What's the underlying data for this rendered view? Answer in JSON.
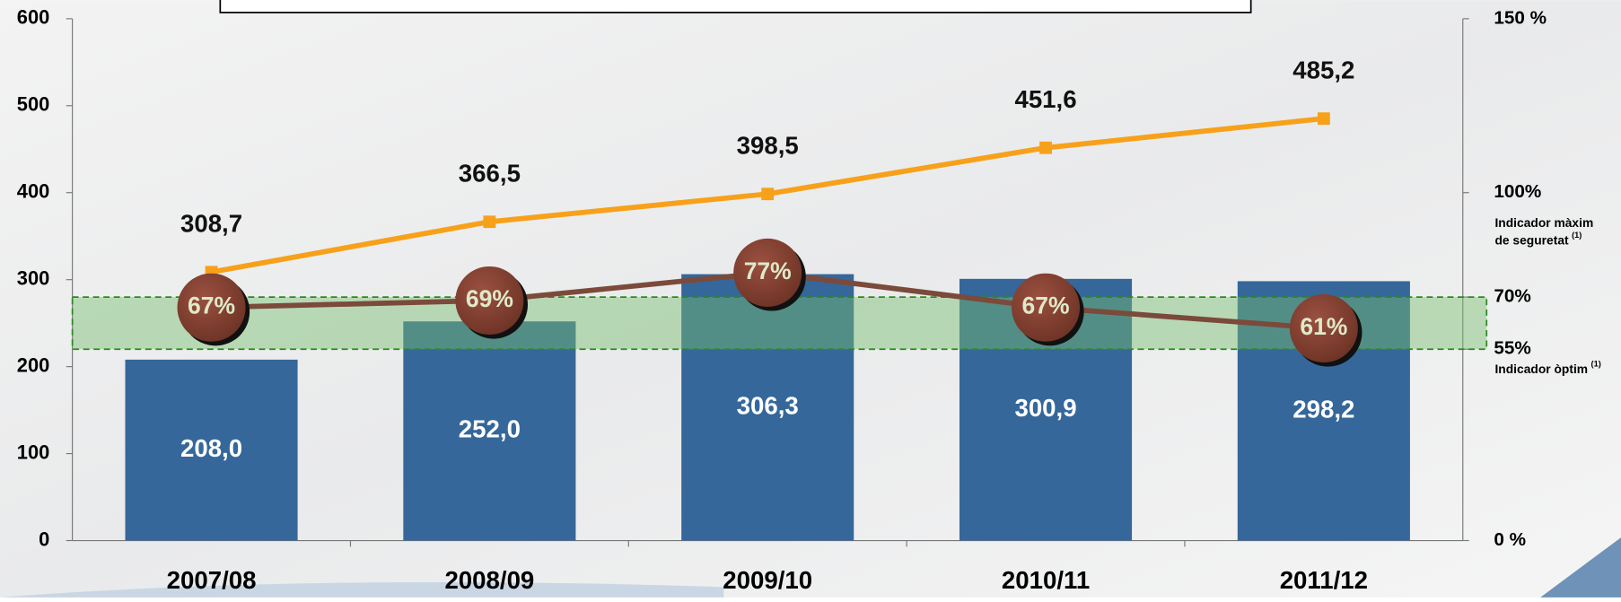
{
  "chart_data": {
    "type": "bar",
    "categories": [
      "2007/08",
      "2008/09",
      "2009/10",
      "2010/11",
      "2011/12"
    ],
    "ylim": [
      0,
      600
    ],
    "yticks": [
      0,
      100,
      200,
      300,
      400,
      500,
      600
    ],
    "y2lim": [
      0,
      150
    ],
    "y2ticks": [
      {
        "value": 0,
        "label": "0 %"
      },
      {
        "value": 55,
        "label": "55%"
      },
      {
        "value": 70,
        "label": "70%"
      },
      {
        "value": 100,
        "label": "100%"
      },
      {
        "value": 150,
        "label": "150 %"
      }
    ],
    "series": [
      {
        "type": "bar",
        "color": "#35679a",
        "values": [
          208.0,
          252.0,
          306.3,
          300.9,
          298.2
        ],
        "value_labels": [
          "208,0",
          "252,0",
          "306,3",
          "300,9",
          "298,2"
        ]
      },
      {
        "type": "line",
        "color": "#f7a11a",
        "values": [
          308.7,
          366.5,
          398.5,
          451.6,
          485.2
        ],
        "value_labels": [
          "308,7",
          "366,5",
          "398,5",
          "451,6",
          "485,2"
        ]
      },
      {
        "type": "line",
        "axis": "y2",
        "color": "#7b4a3a",
        "marker_color": "#7e3a2c",
        "values": [
          67,
          69,
          77,
          67,
          61
        ],
        "value_labels": [
          "67%",
          "69%",
          "77%",
          "67%",
          "61%"
        ]
      }
    ],
    "annotations": [
      {
        "lines": [
          "Indicador màxim",
          "de seguretat"
        ],
        "note": "(1)"
      },
      {
        "lines": [
          "Indicador òptim"
        ],
        "note": "(1)"
      }
    ]
  }
}
